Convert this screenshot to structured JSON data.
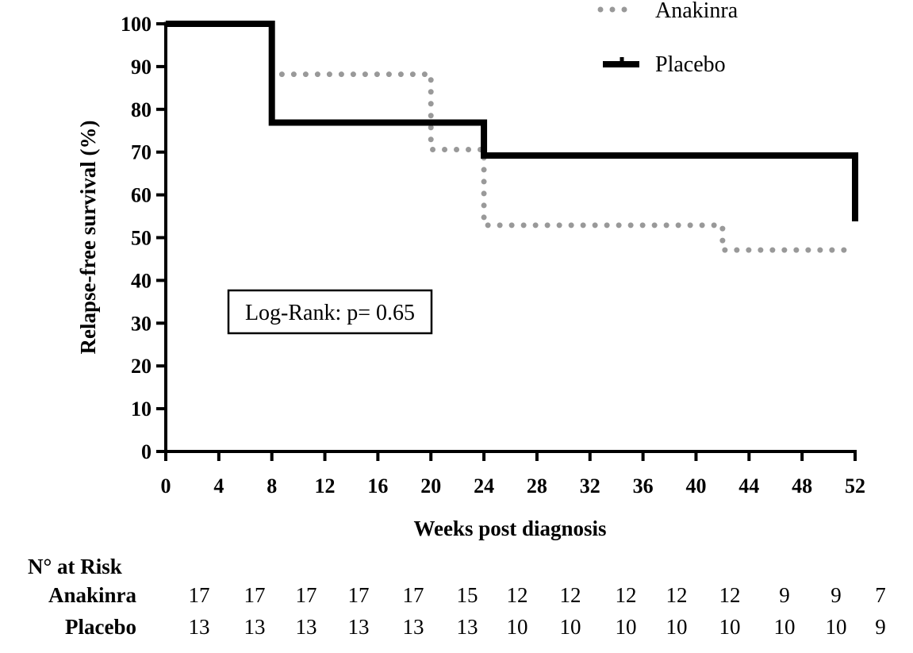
{
  "chart_data": {
    "type": "line",
    "subtype": "kaplan-meier step curve",
    "xlabel": "Weeks post diagnosis",
    "ylabel": "Relapse-free survival (%)",
    "xlim": [
      0,
      52
    ],
    "ylim": [
      0,
      100
    ],
    "x_ticks": [
      0,
      4,
      8,
      12,
      16,
      20,
      24,
      28,
      32,
      36,
      40,
      44,
      48,
      52
    ],
    "y_ticks": [
      0,
      10,
      20,
      30,
      40,
      50,
      60,
      70,
      80,
      90,
      100
    ],
    "grid": false,
    "legend_position": "top-right",
    "series": [
      {
        "name": "Anakinra",
        "style": "dotted",
        "color": "#999999",
        "steps": [
          [
            0,
            100
          ],
          [
            8,
            88.2
          ],
          [
            20,
            70.6
          ],
          [
            24,
            52.9
          ],
          [
            42,
            47.1
          ],
          [
            52,
            47.1
          ]
        ]
      },
      {
        "name": "Placebo",
        "style": "solid",
        "color": "#000000",
        "steps": [
          [
            0,
            100
          ],
          [
            8,
            76.9
          ],
          [
            24,
            69.2
          ],
          [
            52,
            53.8
          ]
        ]
      }
    ],
    "annotation": "Log-Rank: p= 0.65",
    "risk_table": {
      "title": "N° at Risk",
      "rows": [
        {
          "label": "Anakinra",
          "values": [
            "17",
            "17",
            "17",
            "17",
            "17",
            "15",
            "12",
            "12",
            "12",
            "12",
            "12",
            "9",
            "9",
            "7"
          ]
        },
        {
          "label": "Placebo",
          "values": [
            "13",
            "13",
            "13",
            "13",
            "13",
            "13",
            "10",
            "10",
            "10",
            "10",
            "10",
            "10",
            "10",
            "9"
          ]
        }
      ]
    }
  }
}
